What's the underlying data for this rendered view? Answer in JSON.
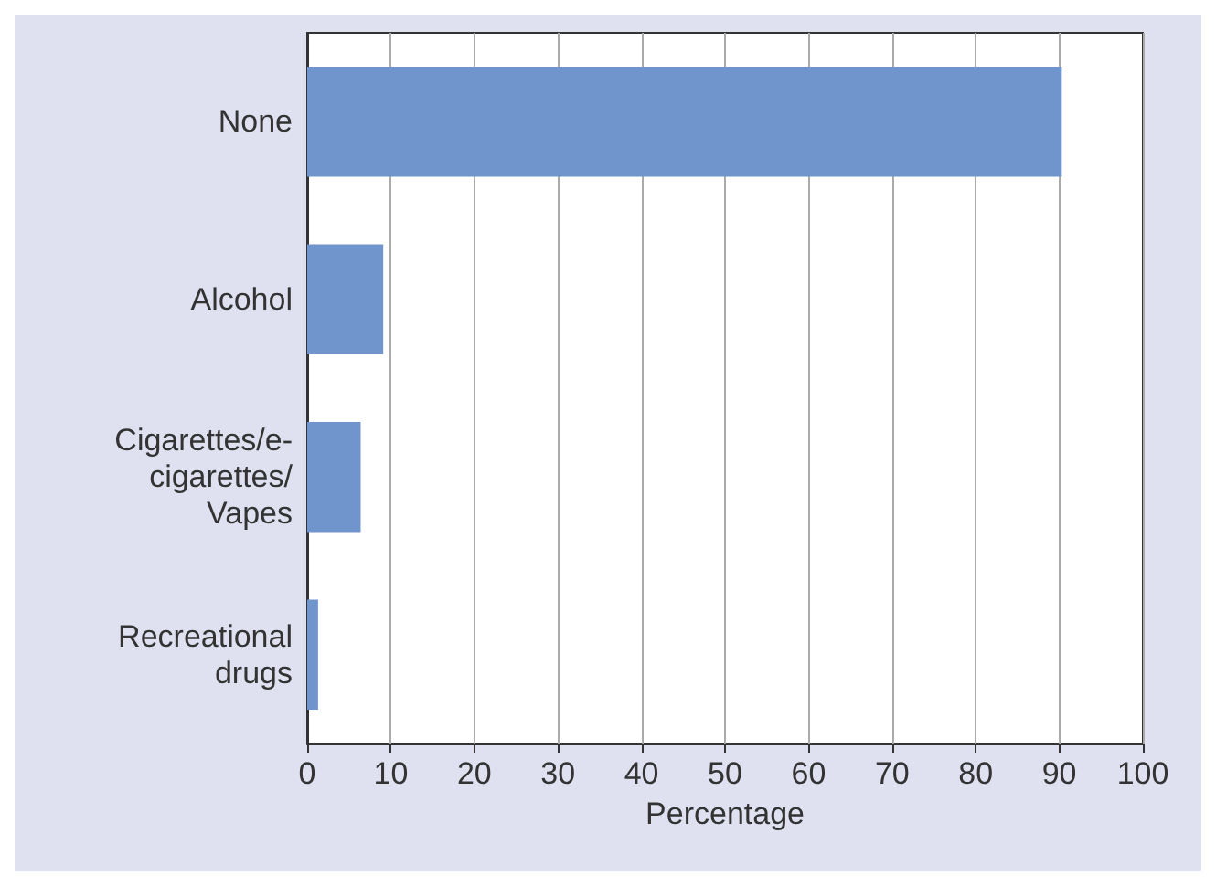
{
  "chart_data": {
    "type": "bar",
    "orientation": "horizontal",
    "xlabel": "Percentage",
    "categories": [
      "None",
      "Alcohol",
      "Cigarettes/e-\ncigarettes/\nVapes",
      "Recreational\ndrugs"
    ],
    "values": [
      90.3,
      9.1,
      6.4,
      1.3
    ],
    "color": "#7094cc",
    "xlim": [
      0,
      100
    ],
    "xticks": [
      0,
      10,
      20,
      30,
      40,
      50,
      60,
      70,
      80,
      90,
      100
    ],
    "grid": "x"
  }
}
